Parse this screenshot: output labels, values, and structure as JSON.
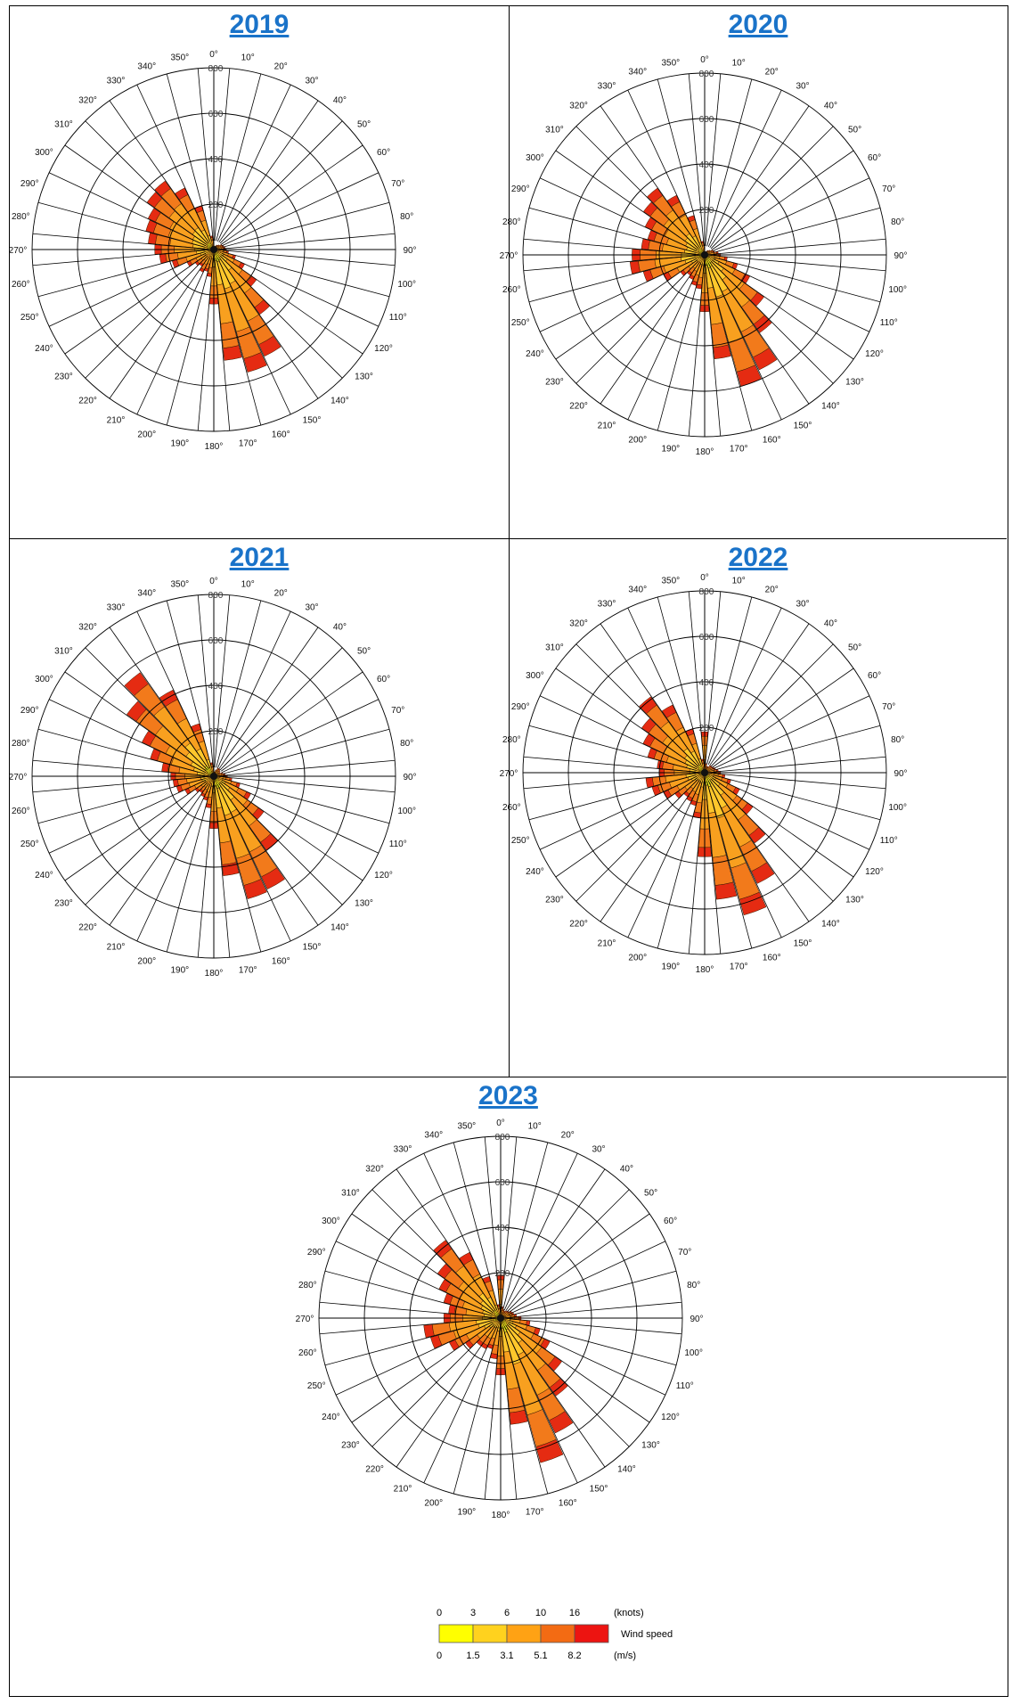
{
  "chart_data": [
    {
      "type": "polar-bar",
      "title": "2019",
      "radial_max": 800,
      "radial_ticks": [
        "200",
        "400",
        "600",
        "800"
      ],
      "angle_labels": [
        "0°",
        "10°",
        "20°",
        "30°",
        "40°",
        "50°",
        "60°",
        "70°",
        "80°",
        "90°",
        "100°",
        "110°",
        "120°",
        "130°",
        "140°",
        "150°",
        "160°",
        "170°",
        "180°",
        "190°",
        "200°",
        "210°",
        "220°",
        "230°",
        "240°",
        "250°",
        "260°",
        "270°",
        "280°",
        "290°",
        "300°",
        "310°",
        "320°",
        "330°",
        "340°",
        "350°"
      ],
      "direction_totals": [
        20,
        10,
        15,
        20,
        25,
        30,
        40,
        45,
        50,
        55,
        65,
        100,
        150,
        230,
        350,
        520,
        560,
        490,
        240,
        120,
        100,
        110,
        90,
        100,
        130,
        190,
        240,
        260,
        290,
        310,
        320,
        360,
        370,
        300,
        200,
        60
      ]
    },
    {
      "type": "polar-bar",
      "title": "2020",
      "radial_max": 800,
      "radial_ticks": [
        "200",
        "400",
        "600",
        "800"
      ],
      "angle_labels": [
        "0°",
        "10°",
        "20°",
        "30°",
        "40°",
        "50°",
        "60°",
        "70°",
        "80°",
        "90°",
        "100°",
        "110°",
        "120°",
        "130°",
        "140°",
        "150°",
        "160°",
        "170°",
        "180°",
        "190°",
        "200°",
        "210°",
        "220°",
        "230°",
        "240°",
        "250°",
        "260°",
        "270°",
        "280°",
        "290°",
        "300°",
        "310°",
        "320°",
        "330°",
        "340°",
        "350°"
      ],
      "direction_totals": [
        10,
        15,
        10,
        20,
        25,
        30,
        40,
        45,
        60,
        70,
        100,
        150,
        220,
        320,
        420,
        560,
        600,
        460,
        250,
        150,
        140,
        120,
        110,
        130,
        200,
        280,
        330,
        320,
        280,
        260,
        290,
        330,
        360,
        290,
        180,
        60
      ]
    },
    {
      "type": "polar-bar",
      "title": "2021",
      "radial_max": 800,
      "radial_ticks": [
        "200",
        "400",
        "600",
        "800"
      ],
      "angle_labels": [
        "0°",
        "10°",
        "20°",
        "30°",
        "40°",
        "50°",
        "60°",
        "70°",
        "80°",
        "90°",
        "100°",
        "110°",
        "120°",
        "130°",
        "140°",
        "150°",
        "160°",
        "170°",
        "180°",
        "190°",
        "200°",
        "210°",
        "220°",
        "230°",
        "240°",
        "250°",
        "260°",
        "270°",
        "280°",
        "290°",
        "300°",
        "310°",
        "320°",
        "330°",
        "340°",
        "350°"
      ],
      "direction_totals": [
        15,
        20,
        30,
        40,
        40,
        35,
        30,
        40,
        50,
        60,
        80,
        120,
        180,
        270,
        400,
        550,
        560,
        440,
        230,
        140,
        110,
        100,
        90,
        100,
        140,
        170,
        180,
        190,
        230,
        290,
        350,
        470,
        560,
        420,
        240,
        60
      ]
    },
    {
      "type": "polar-bar",
      "title": "2022",
      "radial_max": 800,
      "radial_ticks": [
        "200",
        "400",
        "600",
        "800"
      ],
      "angle_labels": [
        "0°",
        "10°",
        "20°",
        "30°",
        "40°",
        "50°",
        "60°",
        "70°",
        "80°",
        "90°",
        "100°",
        "110°",
        "120°",
        "130°",
        "140°",
        "150°",
        "160°",
        "170°",
        "180°",
        "190°",
        "200°",
        "210°",
        "220°",
        "230°",
        "240°",
        "250°",
        "260°",
        "270°",
        "280°",
        "290°",
        "300°",
        "310°",
        "320°",
        "330°",
        "340°",
        "350°"
      ],
      "direction_totals": [
        180,
        40,
        30,
        30,
        40,
        40,
        45,
        50,
        60,
        70,
        90,
        120,
        170,
        260,
        380,
        540,
        650,
        560,
        370,
        200,
        150,
        140,
        130,
        160,
        200,
        240,
        260,
        200,
        210,
        260,
        300,
        340,
        410,
        330,
        200,
        60
      ]
    },
    {
      "type": "polar-bar",
      "title": "2023",
      "radial_max": 800,
      "radial_ticks": [
        "200",
        "400",
        "600",
        "800"
      ],
      "angle_labels": [
        "0°",
        "10°",
        "20°",
        "30°",
        "40°",
        "50°",
        "60°",
        "70°",
        "80°",
        "90°",
        "100°",
        "110°",
        "120°",
        "130°",
        "140°",
        "150°",
        "160°",
        "170°",
        "180°",
        "190°",
        "200°",
        "210°",
        "220°",
        "230°",
        "240°",
        "250°",
        "260°",
        "270°",
        "280°",
        "290°",
        "300°",
        "310°",
        "320°",
        "330°",
        "340°",
        "350°"
      ],
      "direction_totals": [
        190,
        50,
        40,
        35,
        40,
        45,
        55,
        60,
        70,
        90,
        130,
        180,
        240,
        330,
        420,
        560,
        660,
        470,
        250,
        180,
        140,
        150,
        150,
        190,
        250,
        320,
        340,
        250,
        230,
        260,
        300,
        340,
        420,
        320,
        190,
        60
      ]
    }
  ],
  "legend": {
    "knots_ticks": [
      "0",
      "3",
      "6",
      "10",
      "16"
    ],
    "knots_unit": "(knots)",
    "ms_ticks": [
      "0",
      "1.5",
      "3.1",
      "5.1",
      "8.2"
    ],
    "ms_unit": "(m/s)",
    "label": "Wind speed",
    "colors": [
      "#ffff00",
      "#ffd21e",
      "#ffa214",
      "#f36b13",
      "#ed1411"
    ]
  },
  "colors": {
    "title": "#1a73c9",
    "band_shares": [
      0.1,
      0.22,
      0.35,
      0.22,
      0.11
    ],
    "band_colors": [
      "#f5f51f",
      "#fec72c",
      "#f8a01f",
      "#f27a1b",
      "#e52b12"
    ]
  }
}
